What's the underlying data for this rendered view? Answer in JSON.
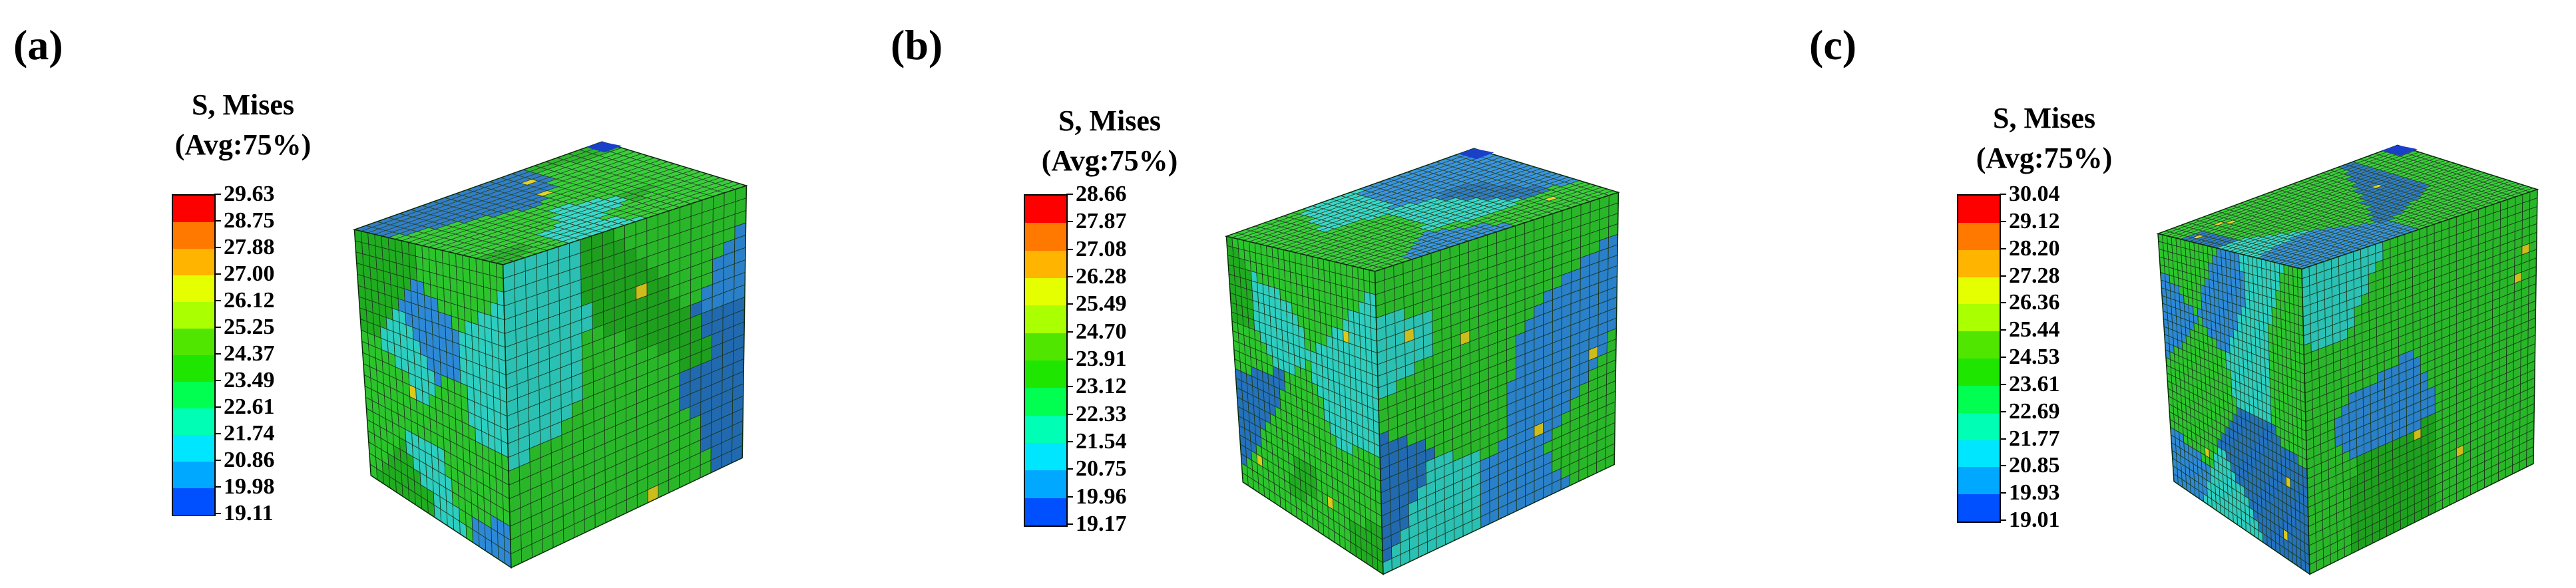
{
  "colormap": [
    "#0000ff",
    "#0050ff",
    "#00a8ff",
    "#00e6ff",
    "#00ffb4",
    "#00ff50",
    "#1ee600",
    "#50e600",
    "#aaff00",
    "#e6ff00",
    "#ffb400",
    "#ff7800",
    "#ff0000"
  ],
  "cube_colors": {
    "green": "#2ecc2e",
    "green_dark": "#22b322",
    "blue": "#2f8fe0",
    "blue_dark": "#2676c4",
    "teal": "#2fd6c8",
    "yellow": "#e6d21e",
    "navy": "#1a3fc8"
  },
  "panels": [
    {
      "label": "(a)",
      "legend_title_1": "S, Mises",
      "legend_title_2": "(Avg:75%)",
      "ticks": [
        "29.63",
        "28.75",
        "27.88",
        "27.00",
        "26.12",
        "25.25",
        "24.37",
        "23.49",
        "22.61",
        "21.74",
        "20.86",
        "19.98",
        "19.11"
      ]
    },
    {
      "label": "(b)",
      "legend_title_1": "S, Mises",
      "legend_title_2": "(Avg:75%)",
      "ticks": [
        "28.66",
        "27.87",
        "27.08",
        "26.28",
        "25.49",
        "24.70",
        "23.91",
        "23.12",
        "22.33",
        "21.54",
        "20.75",
        "19.96",
        "19.17"
      ]
    },
    {
      "label": "(c)",
      "legend_title_1": "S, Mises",
      "legend_title_2": "(Avg:75%)",
      "ticks": [
        "30.04",
        "29.12",
        "28.20",
        "27.28",
        "26.36",
        "25.44",
        "24.53",
        "23.61",
        "22.69",
        "21.77",
        "20.85",
        "19.93",
        "19.01"
      ]
    }
  ]
}
